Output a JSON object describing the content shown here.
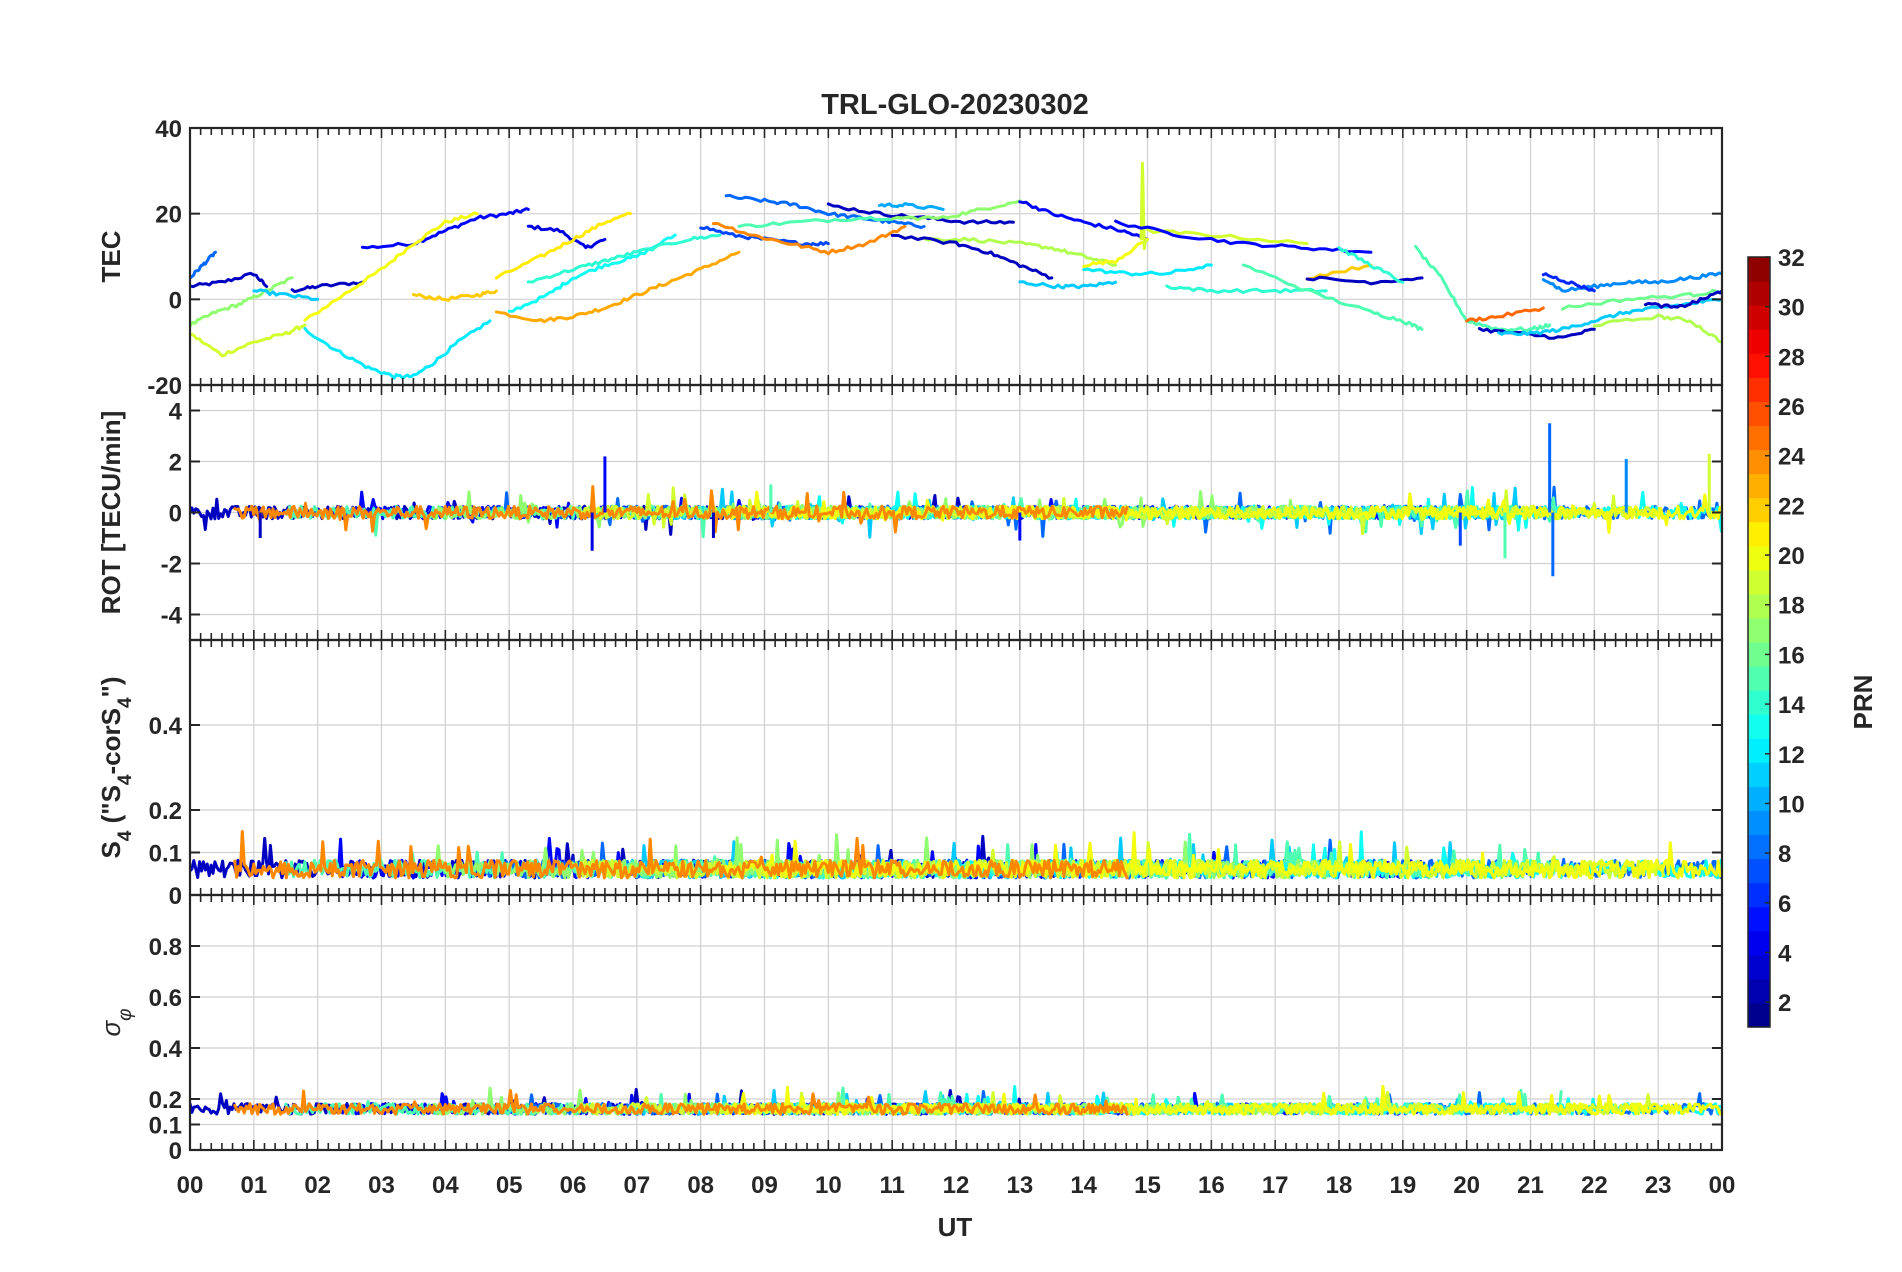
{
  "chart_data": {
    "type": "line",
    "title": "TRL-GLO-20230302",
    "xlabel": "UT",
    "xlim": [
      0,
      24
    ],
    "x_tick_labels": [
      "00",
      "01",
      "02",
      "03",
      "04",
      "05",
      "06",
      "07",
      "08",
      "09",
      "10",
      "11",
      "12",
      "13",
      "14",
      "15",
      "16",
      "17",
      "18",
      "19",
      "20",
      "21",
      "22",
      "23",
      "00"
    ],
    "panels": [
      {
        "id": "tec",
        "ylabel": "TEC",
        "ylim": [
          -20,
          40
        ],
        "y_ticks": [
          -20,
          0,
          20,
          40
        ],
        "y_tick_labels": [
          "-20",
          "0",
          "20",
          "40"
        ],
        "series": [
          {
            "prn": 3,
            "x": [
              0.0,
              0.5,
              1.0,
              1.2
            ],
            "y": [
              3,
              4,
              6,
              3
            ]
          },
          {
            "prn": 3,
            "x": [
              1.6,
              2.0,
              2.7
            ],
            "y": [
              2,
              3,
              4
            ]
          },
          {
            "prn": 5,
            "x": [
              2.7,
              3.5,
              4.0,
              4.5,
              5.0,
              5.3
            ],
            "y": [
              12,
              13,
              16,
              19,
              20,
              21
            ]
          },
          {
            "prn": 4,
            "x": [
              5.3,
              5.8,
              6.2,
              6.5
            ],
            "y": [
              17,
              16,
              12,
              14
            ]
          },
          {
            "prn": 20,
            "x": [
              1.8,
              2.5,
              3.0,
              3.5,
              4.0,
              4.5
            ],
            "y": [
              -5,
              2,
              7,
              13,
              18,
              20
            ]
          },
          {
            "prn": 19,
            "x": [
              0.0,
              0.5,
              1.0,
              1.5,
              1.8
            ],
            "y": [
              -8,
              -13,
              -10,
              -8,
              -6
            ]
          },
          {
            "prn": 17,
            "x": [
              0.0,
              0.4,
              0.8,
              1.2,
              1.6
            ],
            "y": [
              -6,
              -3,
              -1,
              2,
              5
            ]
          },
          {
            "prn": 12,
            "x": [
              1.8,
              2.3,
              2.8,
              3.2,
              3.5,
              3.8,
              4.2,
              4.7
            ],
            "y": [
              -7,
              -12,
              -16,
              -18,
              -18,
              -15,
              -10,
              -5
            ]
          },
          {
            "prn": 22,
            "x": [
              3.5,
              4.0,
              4.5,
              4.8
            ],
            "y": [
              1,
              0,
              1,
              2
            ]
          },
          {
            "prn": 23,
            "x": [
              4.8,
              5.5,
              6.0,
              6.5,
              7.0,
              7.5,
              8.0,
              8.6
            ],
            "y": [
              -3,
              -5,
              -4,
              -2,
              1,
              4,
              7,
              11
            ]
          },
          {
            "prn": 21,
            "x": [
              4.8,
              5.5,
              6.0,
              6.5,
              6.9
            ],
            "y": [
              5,
              10,
              14,
              18,
              20
            ]
          },
          {
            "prn": 13,
            "x": [
              5.0,
              5.6,
              6.0,
              6.5,
              7.0,
              7.6
            ],
            "y": [
              -3,
              1,
              5,
              8,
              10,
              15
            ]
          },
          {
            "prn": 14,
            "x": [
              5.3,
              6.0,
              6.5,
              7.0,
              7.8,
              8.3
            ],
            "y": [
              4,
              7,
              9,
              11,
              14,
              15
            ]
          },
          {
            "prn": 8,
            "x": [
              0.0,
              0.2,
              0.4
            ],
            "y": [
              5,
              8,
              11
            ]
          },
          {
            "prn": 11,
            "x": [
              1.0,
              1.5,
              2.0
            ],
            "y": [
              2,
              1,
              0
            ]
          },
          {
            "prn": 8,
            "x": [
              8.4,
              9.0,
              9.5,
              10.0,
              10.5,
              11.0,
              11.5
            ],
            "y": [
              24,
              23,
              22,
              20,
              19,
              18,
              17
            ]
          },
          {
            "prn": 7,
            "x": [
              8.0,
              8.5,
              9.0,
              9.6,
              10.0
            ],
            "y": [
              17,
              15,
              14,
              13,
              13
            ]
          },
          {
            "prn": 24,
            "x": [
              8.2,
              8.8,
              9.4,
              10.0,
              10.6,
              11.2
            ],
            "y": [
              18,
              15,
              13,
              11,
              13,
              17
            ]
          },
          {
            "prn": 15,
            "x": [
              8.6,
              9.5,
              10.5,
              11.3
            ],
            "y": [
              17,
              18,
              19,
              19
            ]
          },
          {
            "prn": 3,
            "x": [
              10.0,
              10.8,
              11.5,
              12.2,
              12.9
            ],
            "y": [
              22,
              20,
              19,
              18,
              18
            ]
          },
          {
            "prn": 10,
            "x": [
              10.8,
              11.2,
              11.8
            ],
            "y": [
              22,
              22,
              21
            ]
          },
          {
            "prn": 17,
            "x": [
              11.0,
              11.8,
              12.4,
              13.0
            ],
            "y": [
              19,
              19,
              21,
              23
            ]
          },
          {
            "prn": 18,
            "x": [
              11.5,
              12.2,
              13.0,
              13.5,
              14.0,
              14.5
            ],
            "y": [
              14,
              14,
              13,
              12,
              10,
              8
            ]
          },
          {
            "prn": 3,
            "x": [
              11.0,
              12.0,
              12.5,
              13.0,
              13.5
            ],
            "y": [
              15,
              13,
              11,
              8,
              5
            ]
          },
          {
            "prn": 5,
            "x": [
              13.0,
              13.5,
              14.0,
              14.6,
              15.0
            ],
            "y": [
              23,
              20,
              18,
              16,
              14
            ]
          },
          {
            "prn": 11,
            "x": [
              13.0,
              13.6,
              14.0,
              14.5
            ],
            "y": [
              4,
              3,
              3,
              4
            ]
          },
          {
            "prn": 20,
            "x": [
              14.0,
              14.5,
              15.0
            ],
            "y": [
              8,
              9,
              14
            ]
          },
          {
            "prn": 19,
            "x": [
              14.9,
              14.92,
              14.95,
              14.97
            ],
            "y": [
              14,
              32,
              12,
              14
            ]
          },
          {
            "prn": 12,
            "x": [
              14.0,
              14.7,
              15.3,
              16.0
            ],
            "y": [
              7,
              6,
              6,
              8
            ]
          },
          {
            "prn": 19,
            "x": [
              15.0,
              16.0,
              17.5
            ],
            "y": [
              16,
              15,
              13
            ]
          },
          {
            "prn": 5,
            "x": [
              14.5,
              15.5,
              16.5,
              17.5,
              18.5
            ],
            "y": [
              18,
              15,
              13,
              12,
              11
            ]
          },
          {
            "prn": 14,
            "x": [
              15.3,
              16.0,
              17.0,
              17.8
            ],
            "y": [
              3,
              2,
              2,
              2
            ]
          },
          {
            "prn": 15,
            "x": [
              16.5,
              17.5,
              18.5,
              19.0,
              19.3
            ],
            "y": [
              8,
              2,
              -3,
              -5,
              -7
            ]
          },
          {
            "prn": 22,
            "x": [
              17.5,
              18.5
            ],
            "y": [
              5,
              8
            ]
          },
          {
            "prn": 3,
            "x": [
              17.5,
              18.5,
              19.3
            ],
            "y": [
              5,
              4,
              5
            ]
          },
          {
            "prn": 14,
            "x": [
              18.0,
              18.5,
              19.0
            ],
            "y": [
              12,
              8,
              4
            ]
          },
          {
            "prn": 15,
            "x": [
              19.2,
              19.6,
              20.0,
              20.5,
              21.0,
              21.3
            ],
            "y": [
              12,
              5,
              -5,
              -7,
              -7,
              -6
            ]
          },
          {
            "prn": 25,
            "x": [
              20.0,
              20.5,
              21.2
            ],
            "y": [
              -5,
              -4,
              -2
            ]
          },
          {
            "prn": 3,
            "x": [
              20.2,
              20.8,
              21.5,
              22.0
            ],
            "y": [
              -7,
              -8,
              -9,
              -7
            ]
          },
          {
            "prn": 11,
            "x": [
              20.5,
              21.0,
              21.5,
              22.0,
              22.5,
              23.0,
              23.5,
              24.0
            ],
            "y": [
              -8,
              -8,
              -7,
              -5,
              -3,
              -2,
              -1,
              0
            ]
          },
          {
            "prn": 9,
            "x": [
              21.2,
              21.5,
              22.0,
              22.5,
              23.0,
              23.5,
              24.0
            ],
            "y": [
              5,
              2,
              3,
              4,
              4,
              5,
              6
            ]
          },
          {
            "prn": 6,
            "x": [
              21.2,
              21.6,
              22.0
            ],
            "y": [
              6,
              4,
              2
            ]
          },
          {
            "prn": 16,
            "x": [
              21.5,
              22.5,
              23.5,
              24.0
            ],
            "y": [
              -2,
              0,
              1,
              2
            ]
          },
          {
            "prn": 3,
            "x": [
              22.8,
              23.3,
              23.7,
              24.0
            ],
            "y": [
              -1,
              -2,
              0,
              2
            ]
          },
          {
            "prn": 18,
            "x": [
              22.0,
              23.0,
              23.5,
              24.0
            ],
            "y": [
              -6,
              -4,
              -5,
              -10
            ]
          }
        ]
      },
      {
        "id": "rot",
        "ylabel": "ROT [TECU/min]",
        "ylim": [
          -5,
          5
        ],
        "y_ticks": [
          -4,
          -2,
          0,
          2,
          4
        ],
        "y_tick_labels": [
          "-4",
          "-2",
          "0",
          "2",
          "4"
        ],
        "noise_level": 0.25,
        "spikes": [
          {
            "x": 6.5,
            "y": 2.2,
            "prn": 5
          },
          {
            "x": 6.3,
            "y": -1.5,
            "prn": 4
          },
          {
            "x": 21.3,
            "y": 3.5,
            "prn": 8
          },
          {
            "x": 21.35,
            "y": -2.5,
            "prn": 8
          },
          {
            "x": 13.0,
            "y": -1.1,
            "prn": 5
          },
          {
            "x": 8.2,
            "y": -1.0,
            "prn": 3
          },
          {
            "x": 19.9,
            "y": -1.3,
            "prn": 7
          },
          {
            "x": 20.6,
            "y": -1.8,
            "prn": 15
          },
          {
            "x": 22.5,
            "y": 2.1,
            "prn": 9
          },
          {
            "x": 23.8,
            "y": 2.3,
            "prn": 19
          },
          {
            "x": 1.1,
            "y": -1.0,
            "prn": 3
          },
          {
            "x": 9.1,
            "y": 1.1,
            "prn": 15
          }
        ]
      },
      {
        "id": "s4",
        "ylabel": "S_4 (\"S_4-corS_4\")",
        "ylim": [
          0,
          0.6
        ],
        "y_ticks": [
          0,
          0.1,
          0.2,
          0.4
        ],
        "y_tick_labels": [
          "0",
          "0.1",
          "0.2",
          "0.4"
        ],
        "baseline": 0.04,
        "noise_level": 0.06
      },
      {
        "id": "sigma_phi",
        "ylabel": "σ_φ",
        "ylim": [
          0,
          1.0
        ],
        "y_ticks": [
          0,
          0.1,
          0.2,
          0.4,
          0.6,
          0.8
        ],
        "y_tick_labels": [
          "0",
          "0.1",
          "0.2",
          "0.4",
          "0.6",
          "0.8"
        ],
        "baseline": 0.14,
        "noise_level": 0.06
      }
    ],
    "colorbar": {
      "label": "PRN",
      "colormap": "jet",
      "range": [
        1,
        32
      ],
      "ticks": [
        2,
        4,
        6,
        8,
        10,
        12,
        14,
        16,
        18,
        20,
        22,
        24,
        26,
        28,
        30,
        32
      ],
      "tick_labels": [
        "2",
        "4",
        "6",
        "8",
        "10",
        "12",
        "14",
        "16",
        "18",
        "20",
        "22",
        "24",
        "26",
        "28",
        "30",
        "32"
      ]
    }
  }
}
